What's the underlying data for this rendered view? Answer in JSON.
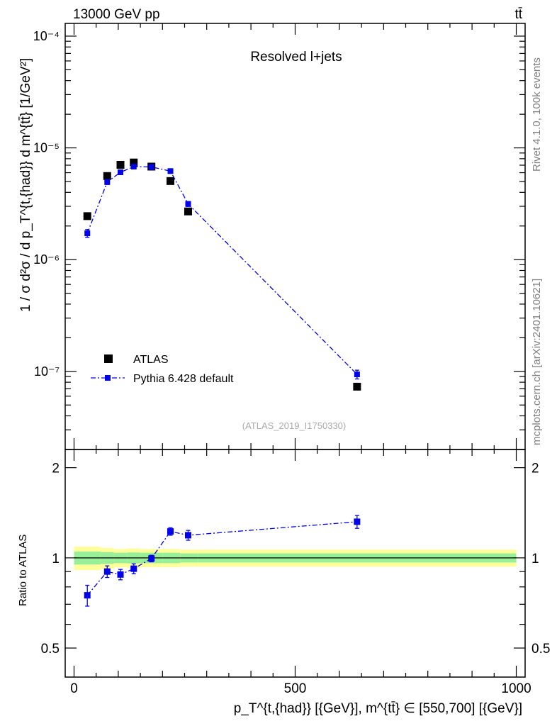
{
  "header": {
    "energy": "13000 GeV pp",
    "process": "tt̄",
    "right_top": "Rivet 4.1.0,  100k events",
    "right_bottom": "mcplots.cern.ch [arXiv:2401.10621]"
  },
  "chart_data": [
    {
      "type": "scatter",
      "title": "Resolved l+jets",
      "watermark": "(ATLAS_2019_I1750330)",
      "yscale": "log",
      "ylim": [
        2e-08,
        0.00013
      ],
      "xlim": [
        -20,
        1020
      ],
      "ylabel": "1 / σ d²σ / d p_T^{t,{had}} d m^{tt̄} [1/GeV²]",
      "ytick_labels": [
        "10⁻⁷",
        "10⁻⁶",
        "10⁻⁵",
        "10⁻⁴"
      ],
      "ytick_values": [
        1e-07,
        1e-06,
        1e-05,
        0.0001
      ],
      "legend": [
        "ATLAS",
        "Pythia 6.428 default"
      ],
      "series": [
        {
          "name": "ATLAS",
          "color": "#000000",
          "marker": "square",
          "x": [
            30,
            75,
            105,
            135,
            175,
            218,
            258,
            640
          ],
          "y": [
            2.45e-06,
            5.6e-06,
            7.05e-06,
            7.4e-06,
            6.8e-06,
            5.05e-06,
            2.7e-06,
            7.3e-08
          ]
        },
        {
          "name": "Pythia 6.428 default",
          "color": "#0000ee",
          "marker": "square",
          "line": "dashdot",
          "x": [
            30,
            75,
            105,
            135,
            175,
            218,
            258,
            640
          ],
          "y": [
            1.72e-06,
            4.95e-06,
            6.05e-06,
            6.8e-06,
            6.75e-06,
            6.2e-06,
            3.15e-06,
            9.4e-08
          ],
          "yerr_rel": [
            0.08,
            0.05,
            0.04,
            0.04,
            0.03,
            0.03,
            0.05,
            0.09
          ]
        }
      ]
    },
    {
      "type": "scatter",
      "ylabel": "Ratio to ATLAS",
      "xlabel": "p_T^{t,{had}} [{GeV}], m^{tt̄} ∈ [550,700] [{GeV}]",
      "ylim": [
        0.4,
        2.3
      ],
      "xlim": [
        -20,
        1020
      ],
      "xtick_labels": [
        "0",
        "500",
        "1000"
      ],
      "xtick_values": [
        0,
        500,
        1000
      ],
      "ytick_labels": [
        "0.5",
        "1",
        "2"
      ],
      "ytick_values": [
        0.5,
        1,
        2
      ],
      "reference_line": 1,
      "band_edges": [
        0,
        60,
        90,
        120,
        150,
        200,
        240,
        280,
        1000
      ],
      "band_yellow_half": [
        0.09,
        0.08,
        0.07,
        0.075,
        0.07,
        0.07,
        0.065,
        0.065
      ],
      "band_green_half": [
        0.05,
        0.045,
        0.04,
        0.042,
        0.04,
        0.04,
        0.035,
        0.035
      ],
      "series": [
        {
          "name": "Pythia 6.428 default",
          "color": "#0000ee",
          "x": [
            30,
            75,
            105,
            135,
            175,
            218,
            258,
            640
          ],
          "y": [
            0.75,
            0.9,
            0.88,
            0.92,
            0.995,
            1.225,
            1.19,
            1.32
          ],
          "yerr": [
            0.06,
            0.04,
            0.035,
            0.035,
            0.025,
            0.035,
            0.045,
            0.065
          ]
        }
      ]
    }
  ]
}
